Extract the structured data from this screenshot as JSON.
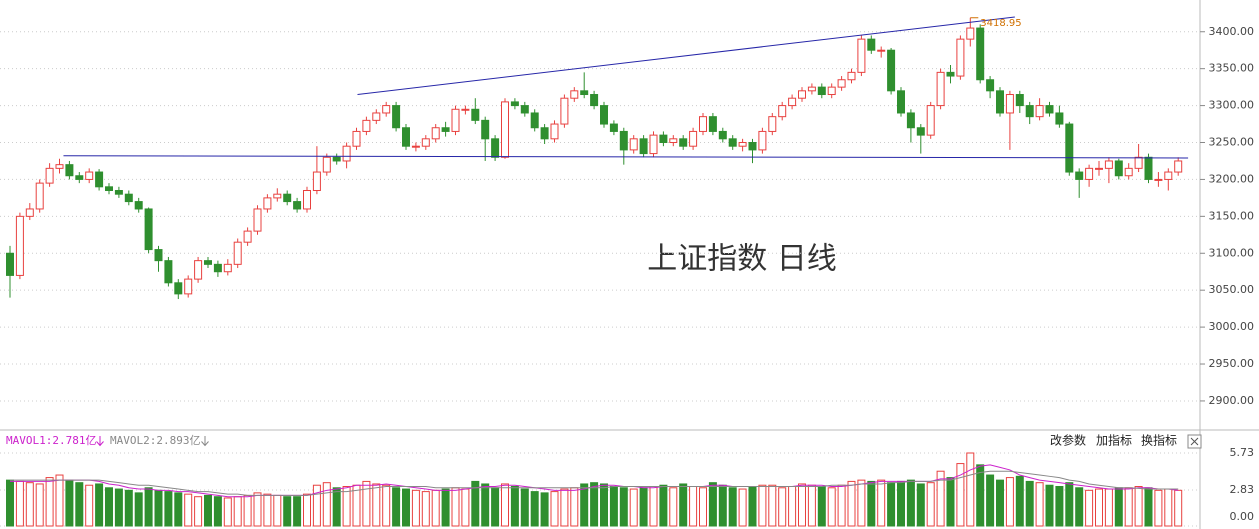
{
  "chart_data": [
    {
      "type": "candlestick",
      "title": "上证指数 日线",
      "up_color": "#e8413f",
      "down_color": "#2f8f2f",
      "open": [
        3100,
        3070,
        3150,
        3160,
        3195,
        3215,
        3220,
        3205,
        3200,
        3210,
        3190,
        3185,
        3180,
        3170,
        3160,
        3105,
        3090,
        3060,
        3045,
        3065,
        3090,
        3085,
        3075,
        3085,
        3115,
        3130,
        3160,
        3175,
        3180,
        3170,
        3160,
        3185,
        3210,
        3230,
        3225,
        3245,
        3265,
        3280,
        3290,
        3300,
        3270,
        3245,
        3245,
        3255,
        3270,
        3265,
        3295,
        3295,
        3280,
        3255,
        3230,
        3305,
        3300,
        3290,
        3270,
        3255,
        3275,
        3310,
        3320,
        3315,
        3300,
        3275,
        3265,
        3240,
        3255,
        3235,
        3260,
        3250,
        3255,
        3245,
        3265,
        3285,
        3265,
        3255,
        3245,
        3250,
        3240,
        3265,
        3285,
        3300,
        3310,
        3320,
        3325,
        3315,
        3325,
        3335,
        3345,
        3390,
        3375,
        3375,
        3320,
        3290,
        3270,
        3260,
        3300,
        3345,
        3340,
        3390,
        3405,
        3335,
        3320,
        3290,
        3315,
        3300,
        3285,
        3300,
        3290,
        3275,
        3210,
        3200,
        3215,
        3215,
        3225,
        3205,
        3215,
        3230,
        3200,
        3200,
        3210
      ],
      "high": [
        3110,
        3155,
        3168,
        3200,
        3222,
        3228,
        3225,
        3210,
        3215,
        3214,
        3195,
        3190,
        3185,
        3175,
        3162,
        3110,
        3095,
        3065,
        3070,
        3095,
        3095,
        3090,
        3092,
        3120,
        3135,
        3165,
        3180,
        3188,
        3185,
        3175,
        3190,
        3245,
        3235,
        3235,
        3250,
        3270,
        3285,
        3295,
        3305,
        3305,
        3275,
        3250,
        3260,
        3275,
        3278,
        3300,
        3300,
        3310,
        3285,
        3260,
        3310,
        3310,
        3305,
        3295,
        3275,
        3280,
        3315,
        3325,
        3345,
        3320,
        3305,
        3280,
        3270,
        3260,
        3260,
        3265,
        3265,
        3260,
        3260,
        3270,
        3290,
        3290,
        3270,
        3260,
        3255,
        3255,
        3270,
        3290,
        3305,
        3315,
        3325,
        3330,
        3330,
        3330,
        3340,
        3350,
        3395,
        3395,
        3380,
        3378,
        3325,
        3295,
        3275,
        3305,
        3350,
        3355,
        3395,
        3418.95,
        3410,
        3340,
        3325,
        3320,
        3320,
        3305,
        3310,
        3305,
        3300,
        3278,
        3215,
        3220,
        3225,
        3230,
        3228,
        3222,
        3248,
        3235,
        3210,
        3215,
        3230
      ],
      "low": [
        3040,
        3065,
        3145,
        3155,
        3190,
        3208,
        3200,
        3195,
        3195,
        3185,
        3180,
        3175,
        3165,
        3155,
        3100,
        3075,
        3055,
        3038,
        3040,
        3060,
        3080,
        3068,
        3070,
        3080,
        3110,
        3125,
        3155,
        3170,
        3165,
        3155,
        3155,
        3180,
        3205,
        3220,
        3215,
        3240,
        3260,
        3275,
        3285,
        3265,
        3240,
        3238,
        3240,
        3250,
        3258,
        3260,
        3288,
        3275,
        3225,
        3225,
        3228,
        3295,
        3285,
        3265,
        3248,
        3250,
        3270,
        3305,
        3310,
        3295,
        3270,
        3260,
        3220,
        3235,
        3230,
        3230,
        3245,
        3245,
        3240,
        3240,
        3260,
        3260,
        3250,
        3240,
        3238,
        3222,
        3235,
        3260,
        3280,
        3295,
        3305,
        3315,
        3310,
        3310,
        3320,
        3330,
        3340,
        3370,
        3365,
        3315,
        3285,
        3250,
        3235,
        3255,
        3295,
        3330,
        3335,
        3380,
        3330,
        3310,
        3285,
        3240,
        3290,
        3275,
        3280,
        3285,
        3270,
        3205,
        3175,
        3190,
        3205,
        3195,
        3200,
        3200,
        3210,
        3195,
        3190,
        3185,
        3205
      ],
      "close": [
        3070,
        3150,
        3160,
        3195,
        3215,
        3220,
        3205,
        3200,
        3210,
        3190,
        3185,
        3180,
        3170,
        3160,
        3105,
        3090,
        3060,
        3045,
        3065,
        3090,
        3085,
        3075,
        3085,
        3115,
        3130,
        3160,
        3175,
        3180,
        3170,
        3160,
        3185,
        3210,
        3230,
        3225,
        3245,
        3265,
        3280,
        3290,
        3300,
        3270,
        3245,
        3245,
        3255,
        3270,
        3265,
        3295,
        3295,
        3280,
        3255,
        3230,
        3305,
        3300,
        3290,
        3270,
        3255,
        3275,
        3310,
        3320,
        3315,
        3300,
        3275,
        3265,
        3240,
        3255,
        3235,
        3260,
        3250,
        3255,
        3245,
        3265,
        3285,
        3265,
        3255,
        3245,
        3250,
        3240,
        3265,
        3285,
        3300,
        3310,
        3320,
        3325,
        3315,
        3325,
        3335,
        3345,
        3390,
        3375,
        3375,
        3320,
        3290,
        3270,
        3260,
        3300,
        3345,
        3340,
        3390,
        3405,
        3335,
        3320,
        3290,
        3315,
        3300,
        3285,
        3300,
        3290,
        3275,
        3210,
        3200,
        3215,
        3215,
        3225,
        3205,
        3215,
        3230,
        3200,
        3200,
        3210,
        3225
      ],
      "ylim": [
        2862,
        3443
      ],
      "yticks": [
        {
          "value": 3400,
          "label": "3400.00"
        },
        {
          "value": 3350,
          "label": "3350.00"
        },
        {
          "value": 3300,
          "label": "3300.00"
        },
        {
          "value": 3250,
          "label": "3250.00"
        },
        {
          "value": 3200,
          "label": "3200.00"
        },
        {
          "value": 3150,
          "label": "3150.00"
        },
        {
          "value": 3100,
          "label": "3100.00"
        },
        {
          "value": 3050,
          "label": "3050.00"
        },
        {
          "value": 3000,
          "label": "3000.00"
        },
        {
          "value": 2950,
          "label": "2950.00"
        },
        {
          "value": 2900,
          "label": "2900.00"
        }
      ],
      "grid": true,
      "trendlines": [
        {
          "color": "#2626a8",
          "x": [
            35.1,
            101.5
          ],
          "y": [
            3315,
            3420
          ]
        },
        {
          "color": "#2626a8",
          "x": [
            5.4,
            119
          ],
          "y": [
            3232,
            3229
          ]
        }
      ]
    },
    {
      "type": "bar",
      "values": [
        3.6,
        3.5,
        3.4,
        3.3,
        3.8,
        4.0,
        3.6,
        3.4,
        3.2,
        3.3,
        3.0,
        2.9,
        2.8,
        2.6,
        3.0,
        2.8,
        2.7,
        2.6,
        2.5,
        2.3,
        2.4,
        2.3,
        2.2,
        2.3,
        2.4,
        2.6,
        2.5,
        2.4,
        2.3,
        2.3,
        2.5,
        3.2,
        3.4,
        3.0,
        3.1,
        3.2,
        3.5,
        3.3,
        3.2,
        3.0,
        2.9,
        2.8,
        2.7,
        2.8,
        2.9,
        3.0,
        2.9,
        3.5,
        3.3,
        3.0,
        3.3,
        3.1,
        2.9,
        2.7,
        2.6,
        2.7,
        2.9,
        3.0,
        3.3,
        3.4,
        3.3,
        3.1,
        3.0,
        2.9,
        3.0,
        3.1,
        3.2,
        3.0,
        3.3,
        3.1,
        3.0,
        3.4,
        3.2,
        3.0,
        2.9,
        3.1,
        3.2,
        3.2,
        3.0,
        3.1,
        3.3,
        3.2,
        3.1,
        3.0,
        3.2,
        3.5,
        3.6,
        3.5,
        3.6,
        3.4,
        3.5,
        3.6,
        3.3,
        3.4,
        4.3,
        3.8,
        4.9,
        5.73,
        4.8,
        4.0,
        3.6,
        3.8,
        3.9,
        3.5,
        3.4,
        3.2,
        3.1,
        3.4,
        3.0,
        2.8,
        2.9,
        2.9,
        3.0,
        3.0,
        3.1,
        3.0,
        2.8,
        2.9,
        2.8
      ],
      "series": [
        {
          "name": "MAVOL1:2.781亿",
          "color": "#cc22cc",
          "values": [
            3.5,
            3.5,
            3.5,
            3.5,
            3.5,
            3.6,
            3.6,
            3.6,
            3.6,
            3.5,
            3.3,
            3.2,
            3.0,
            2.9,
            2.9,
            2.8,
            2.8,
            2.7,
            2.7,
            2.6,
            2.5,
            2.4,
            2.3,
            2.3,
            2.3,
            2.4,
            2.4,
            2.4,
            2.4,
            2.4,
            2.4,
            2.6,
            2.8,
            2.9,
            3.0,
            3.2,
            3.2,
            3.2,
            3.3,
            3.2,
            3.1,
            3.0,
            2.9,
            2.8,
            2.8,
            2.8,
            2.9,
            3.0,
            3.1,
            3.1,
            3.2,
            3.2,
            3.1,
            3.0,
            2.9,
            2.8,
            2.8,
            2.8,
            2.9,
            3.1,
            3.2,
            3.2,
            3.1,
            3.1,
            3.0,
            3.0,
            3.1,
            3.1,
            3.1,
            3.1,
            3.1,
            3.2,
            3.2,
            3.1,
            3.1,
            3.1,
            3.1,
            3.1,
            3.1,
            3.1,
            3.2,
            3.2,
            3.2,
            3.1,
            3.1,
            3.2,
            3.3,
            3.4,
            3.5,
            3.5,
            3.5,
            3.5,
            3.5,
            3.5,
            3.7,
            3.7,
            4.0,
            4.4,
            4.7,
            4.8,
            4.6,
            4.4,
            4.0,
            3.8,
            3.6,
            3.5,
            3.4,
            3.3,
            3.2,
            3.1,
            3.0,
            2.9,
            2.9,
            2.9,
            3.0,
            3.0,
            2.9,
            2.9,
            2.8
          ]
        },
        {
          "name": "MAVOL2:2.893亿",
          "color": "#888888",
          "values": [
            3.6,
            3.6,
            3.6,
            3.6,
            3.6,
            3.6,
            3.6,
            3.6,
            3.6,
            3.6,
            3.5,
            3.4,
            3.3,
            3.2,
            3.2,
            3.1,
            3.0,
            2.9,
            2.8,
            2.7,
            2.7,
            2.6,
            2.5,
            2.5,
            2.4,
            2.4,
            2.4,
            2.4,
            2.4,
            2.4,
            2.4,
            2.5,
            2.6,
            2.7,
            2.7,
            2.8,
            2.9,
            3.0,
            3.1,
            3.1,
            3.1,
            3.1,
            3.1,
            3.0,
            3.0,
            3.0,
            3.0,
            3.0,
            3.0,
            3.0,
            3.0,
            3.0,
            3.0,
            3.0,
            3.0,
            3.0,
            3.0,
            3.0,
            3.0,
            3.0,
            3.0,
            3.1,
            3.1,
            3.1,
            3.1,
            3.1,
            3.1,
            3.1,
            3.1,
            3.1,
            3.1,
            3.1,
            3.1,
            3.1,
            3.1,
            3.1,
            3.1,
            3.1,
            3.1,
            3.1,
            3.1,
            3.1,
            3.1,
            3.2,
            3.2,
            3.2,
            3.3,
            3.3,
            3.3,
            3.4,
            3.4,
            3.5,
            3.5,
            3.5,
            3.6,
            3.6,
            3.8,
            4.0,
            4.2,
            4.3,
            4.3,
            4.3,
            4.2,
            4.1,
            4.0,
            3.9,
            3.8,
            3.6,
            3.5,
            3.3,
            3.2,
            3.1,
            3.0,
            3.0,
            2.95,
            2.9,
            2.9,
            2.9,
            2.9
          ]
        }
      ],
      "ylim": [
        0,
        6.75
      ],
      "yticks": [
        5.73,
        2.83,
        {
          "value": 0,
          "label": "0.00"
        }
      ],
      "toolbar": [
        "改参数",
        "加指标",
        "换指标"
      ]
    }
  ]
}
